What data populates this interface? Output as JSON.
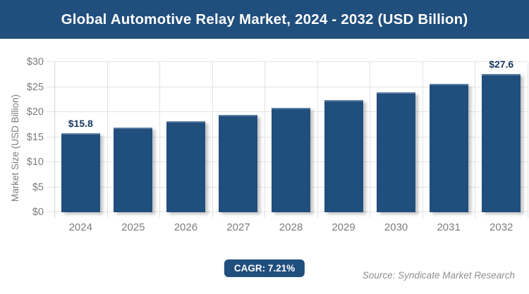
{
  "header": {
    "title": "Global Automotive Relay Market, 2024 - 2032 (USD Billion)"
  },
  "chart_data": {
    "type": "bar",
    "title": "Global Automotive Relay Market, 2024 - 2032 (USD Billion)",
    "categories": [
      "2024",
      "2025",
      "2026",
      "2027",
      "2028",
      "2029",
      "2030",
      "2031",
      "2032"
    ],
    "values": [
      15.8,
      16.9,
      18.2,
      19.5,
      20.9,
      22.4,
      24.0,
      25.7,
      27.6
    ],
    "bar_labels": [
      "$15.8",
      "",
      "",
      "",
      "",
      "",
      "",
      "",
      "$27.6"
    ],
    "xlabel": "",
    "ylabel": "Market Size (USD Billion)",
    "ylim": [
      0,
      30
    ],
    "ytick_step": 5,
    "ytick_labels": [
      "$0",
      "$5",
      "$10",
      "$15",
      "$20",
      "$25",
      "$30"
    ],
    "grid": true,
    "legend_position": "none",
    "bar_color": "#204e7d"
  },
  "footer": {
    "cagr_badge": "CAGR: 7.21%",
    "source": "Source: Syndicate Market Research"
  },
  "colors": {
    "header_bg": "#204e7d",
    "bar": "#204e7d",
    "badge_bg": "#204e7d",
    "grid": "#e3e3e3",
    "tick_text": "#7d7d7d",
    "data_label_text": "#17375d",
    "source_text": "#8f8f8f",
    "title_text": "#ffffff"
  }
}
